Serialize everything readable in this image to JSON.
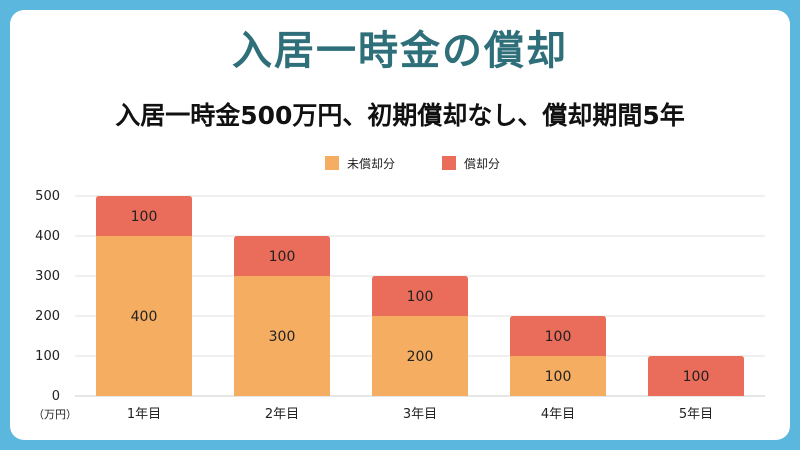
{
  "title": "入居一時金の償却",
  "subtitle": "入居一時金500万円、初期償却なし、償却期間5年",
  "colors": {
    "unamortized": "#f5ad62",
    "amortized": "#ea6c5a",
    "grid": "#e2e2e2",
    "frame": "#5bb7de"
  },
  "chart_data": {
    "type": "bar",
    "stacked": true,
    "categories": [
      "1年目",
      "2年目",
      "3年目",
      "4年目",
      "5年目"
    ],
    "series": [
      {
        "name": "未償却分",
        "values": [
          400,
          300,
          200,
          100,
          0
        ]
      },
      {
        "name": "償却分",
        "values": [
          100,
          100,
          100,
          100,
          100
        ]
      }
    ],
    "yticks": [
      "0",
      "100",
      "200",
      "300",
      "400",
      "500"
    ],
    "ylim": [
      0,
      500
    ],
    "ylabel": "（万円）",
    "legend": "top-center",
    "grid": true
  }
}
